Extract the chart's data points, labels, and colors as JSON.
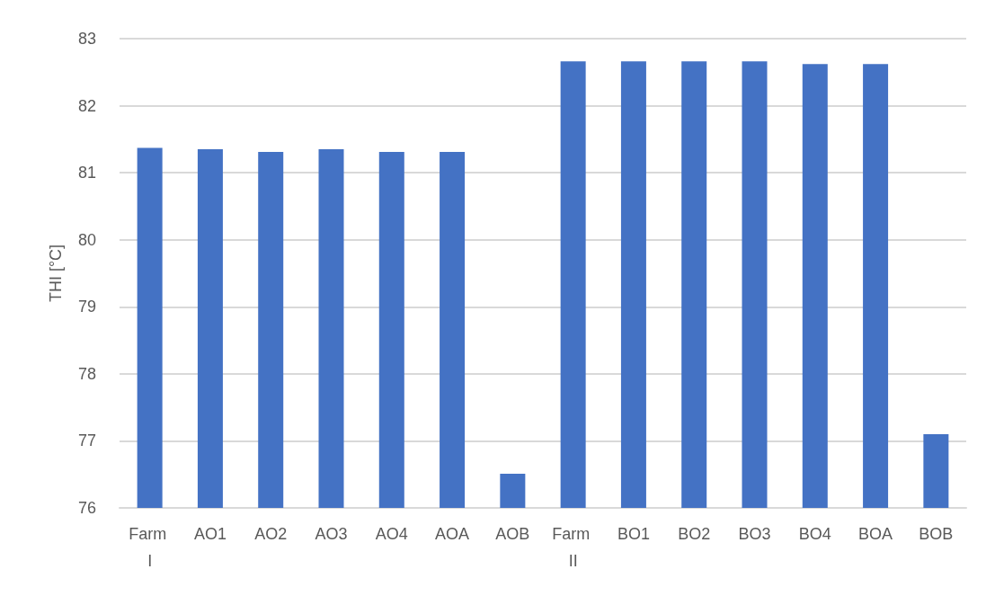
{
  "chart_data": {
    "type": "bar",
    "ylabel": "THI [°C]",
    "categories": [
      "Farm I",
      "AO1",
      "AO2",
      "AO3",
      "AO4",
      "AOA",
      "AOB",
      "Farm II",
      "BO1",
      "BO2",
      "BO3",
      "BO4",
      "BOA",
      "BOB"
    ],
    "values": [
      81.37,
      81.35,
      81.31,
      81.35,
      81.31,
      81.31,
      76.51,
      82.66,
      82.66,
      82.66,
      82.66,
      82.62,
      82.62,
      77.1
    ],
    "color": "#4472c4",
    "ylim": [
      76,
      83
    ],
    "yticks": [
      76,
      77,
      78,
      79,
      80,
      81,
      82,
      83
    ],
    "grid": "y"
  }
}
